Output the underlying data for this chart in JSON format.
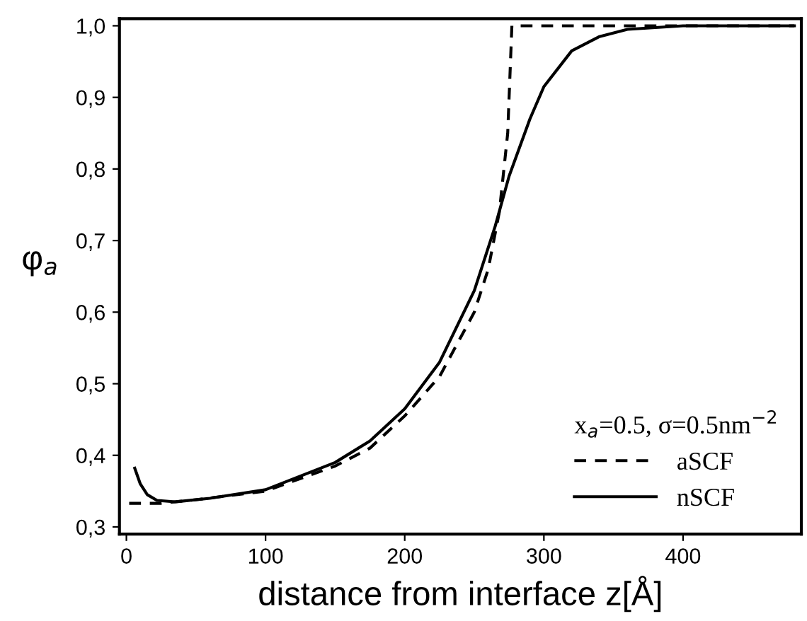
{
  "chart_data": {
    "type": "line",
    "xlabel": "distance from interface z[Å]",
    "ylabel": "φ$_{a}$",
    "legend_title": "x$_{a}$=0.5, σ=0.5nm$^{−2}$",
    "xlim": [
      -5,
      485
    ],
    "ylim": [
      0.29,
      1.01
    ],
    "xticks": [
      0,
      100,
      200,
      300,
      400
    ],
    "yticks": [
      {
        "value": 0.3,
        "label": "0,3"
      },
      {
        "value": 0.4,
        "label": "0,4"
      },
      {
        "value": 0.5,
        "label": "0,5"
      },
      {
        "value": 0.6,
        "label": "0,6"
      },
      {
        "value": 0.7,
        "label": "0,7"
      },
      {
        "value": 0.8,
        "label": "0,8"
      },
      {
        "value": 0.9,
        "label": "0,9"
      },
      {
        "value": 1.0,
        "label": "1,0"
      }
    ],
    "legend": "bottom right",
    "grid": false,
    "series": [
      {
        "name": "aSCF",
        "color": "#000000",
        "line_style": "dashed",
        "x": [
          2,
          25,
          50,
          100,
          150,
          175,
          200,
          225,
          250,
          260,
          268,
          274,
          277,
          300,
          400,
          480
        ],
        "values": [
          0.333,
          0.333,
          0.338,
          0.35,
          0.385,
          0.41,
          0.455,
          0.51,
          0.6,
          0.66,
          0.74,
          0.85,
          1.0,
          1.0,
          1.0,
          1.0
        ]
      },
      {
        "name": "nSCF",
        "color": "#000000",
        "line_style": "solid",
        "x": [
          6,
          10,
          15,
          22,
          35,
          60,
          100,
          150,
          175,
          200,
          225,
          250,
          265,
          275,
          290,
          300,
          320,
          340,
          360,
          400,
          480
        ],
        "values": [
          0.382,
          0.36,
          0.345,
          0.337,
          0.335,
          0.34,
          0.352,
          0.39,
          0.42,
          0.465,
          0.53,
          0.63,
          0.72,
          0.79,
          0.87,
          0.915,
          0.965,
          0.985,
          0.995,
          1.0,
          1.0
        ]
      }
    ]
  }
}
